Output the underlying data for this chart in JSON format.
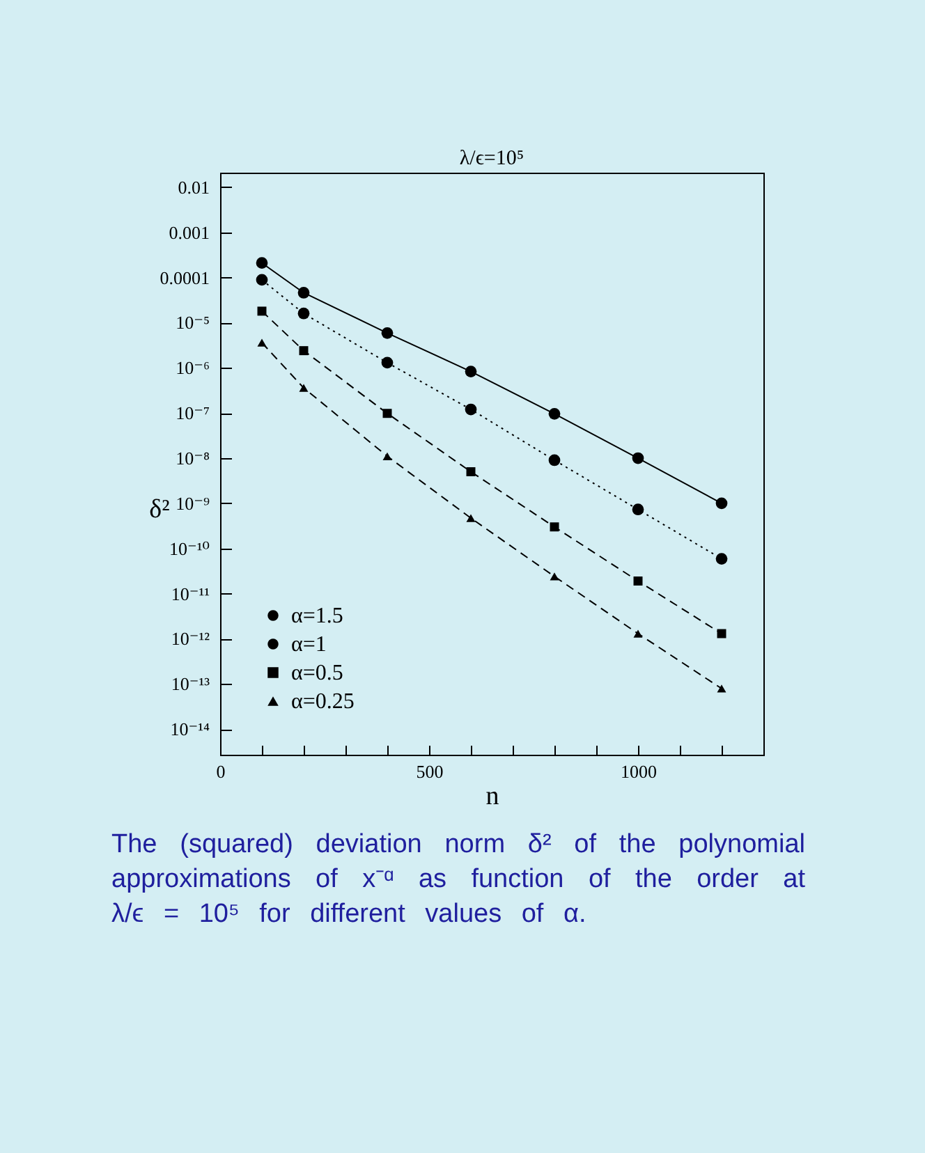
{
  "chart_data": {
    "type": "line",
    "title": "λ/ϵ=10⁵",
    "xlabel": "n",
    "ylabel": "δ²",
    "x": [
      100,
      200,
      400,
      600,
      800,
      1000,
      1200
    ],
    "series": [
      {
        "name": "α=1.5",
        "color": "#000000",
        "marker": "circle",
        "line_style": "solid",
        "values": [
          0.00021,
          4.6e-05,
          5.9e-06,
          8.3e-07,
          9.6e-08,
          1e-08,
          1e-09
        ]
      },
      {
        "name": "α=1",
        "color": "#000000",
        "marker": "circle",
        "line_style": "dotted",
        "values": [
          8.9e-05,
          1.6e-05,
          1.3e-06,
          1.2e-07,
          9e-09,
          7.3e-10,
          5.9e-11
        ]
      },
      {
        "name": "α=0.5",
        "color": "#000000",
        "marker": "square",
        "line_style": "dashed",
        "values": [
          1.8e-05,
          2.4e-06,
          9.8e-08,
          5e-09,
          3e-10,
          1.9e-11,
          1.3e-12
        ]
      },
      {
        "name": "α=0.25",
        "color": "#000000",
        "marker": "triangle",
        "line_style": "dashed",
        "values": [
          3.6e-06,
          3.6e-07,
          1.1e-08,
          4.7e-10,
          2.4e-11,
          1.3e-12,
          7.9e-14
        ]
      }
    ],
    "xlim": [
      0,
      1300
    ],
    "xticks": [
      0,
      {
        "value": 100,
        "label": null
      },
      {
        "value": 200,
        "label": null
      },
      {
        "value": 300,
        "label": null
      },
      {
        "value": 400,
        "label": null
      },
      500,
      {
        "value": 600,
        "label": null
      },
      {
        "value": 700,
        "label": null
      },
      {
        "value": 800,
        "label": null
      },
      {
        "value": 900,
        "label": null
      },
      1000,
      {
        "value": 1100,
        "label": null
      },
      {
        "value": 1200,
        "label": null
      }
    ],
    "ylim": [
      2.7e-15,
      0.021
    ],
    "yticks": [
      0.01,
      0.001,
      0.0001,
      {
        "value": 1e-05,
        "label": "10⁻⁵"
      },
      {
        "value": 1e-06,
        "label": "10⁻⁶"
      },
      {
        "value": 1e-07,
        "label": "10⁻⁷"
      },
      {
        "value": 1e-08,
        "label": "10⁻⁸"
      },
      {
        "value": 1e-09,
        "label": "10⁻⁹"
      },
      {
        "value": 1e-10,
        "label": "10⁻¹⁰"
      },
      {
        "value": 1e-11,
        "label": "10⁻¹¹"
      },
      {
        "value": 1e-12,
        "label": "10⁻¹²"
      },
      {
        "value": 1e-13,
        "label": "10⁻¹³"
      },
      {
        "value": 1e-14,
        "label": "10⁻¹⁴"
      }
    ],
    "log": "y",
    "legend": "bottom left",
    "annotations": [
      "The (squared) deviation norm δ² of the polynomial approximations of x⁻ᵅ as function of the order at λ/ϵ = 10⁵ for different values of α."
    ]
  }
}
